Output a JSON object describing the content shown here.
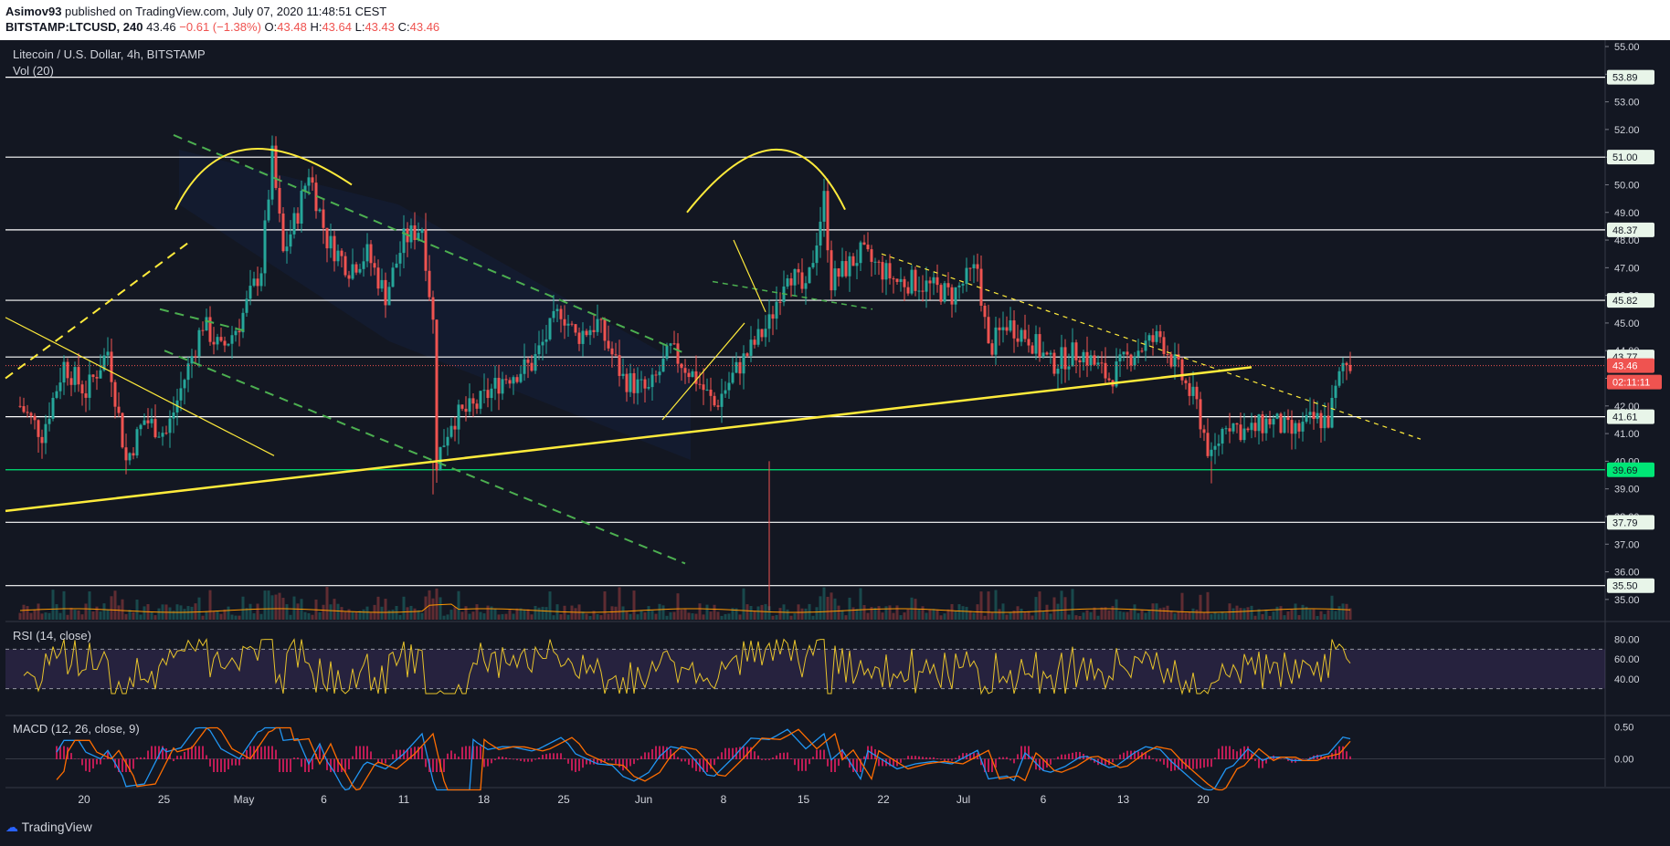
{
  "header": {
    "publisher": "Asimov93",
    "published_text": "published on TradingView.com, July 07, 2020 11:48:51 CEST",
    "symbol": "BITSTAMP:LTCUSD, 240",
    "last": "43.46",
    "change": "−0.61 (−1.38%)",
    "o_label": "O:",
    "o_value": "43.48",
    "h_label": "H:",
    "h_value": "43.64",
    "l_label": "L:",
    "l_value": "43.43",
    "c_label": "C:",
    "c_value": "43.46"
  },
  "footer": {
    "logo_text": "TradingView"
  },
  "colors": {
    "up": "#26a69a",
    "down": "#ef5350",
    "levels": "#ffffff",
    "trend": "#ffeb3b",
    "green_lines": "#4caf50",
    "rsi": "#e7c32b",
    "macd": "#2196f3",
    "signal": "#ff6d00"
  },
  "chart_data": [
    {
      "type": "candlestick",
      "title": "Litecoin / U.S. Dollar, 4h, BITSTAMP",
      "volume_label": "Vol (20)",
      "x_tick_labels": [
        "20",
        "25",
        "May",
        "6",
        "11",
        "18",
        "25",
        "Jun",
        "8",
        "15",
        "22",
        "Jul",
        "6",
        "13",
        "20"
      ],
      "y_ticks": [
        "55.00",
        "54.00",
        "53.00",
        "52.00",
        "51.00",
        "50.00",
        "49.00",
        "48.00",
        "47.00",
        "46.00",
        "45.00",
        "44.00",
        "43.00",
        "42.00",
        "41.00",
        "40.00",
        "39.00",
        "38.00",
        "37.00",
        "36.00",
        "35.00"
      ],
      "ylim": [
        34.5,
        55.0
      ],
      "horizontal_levels": [
        {
          "value": 53.89,
          "label": "53.89"
        },
        {
          "value": 51.0,
          "label": "51.00"
        },
        {
          "value": 48.37,
          "label": "48.37"
        },
        {
          "value": 45.82,
          "label": "45.82"
        },
        {
          "value": 43.77,
          "label": "43.77"
        },
        {
          "value": 41.61,
          "label": "41.61"
        },
        {
          "value": 39.69,
          "label": "39.69"
        },
        {
          "value": 37.79,
          "label": "37.79"
        },
        {
          "value": 35.5,
          "label": "35.50"
        }
      ],
      "last_price": {
        "value": 43.46,
        "label": "43.46",
        "countdown": "02:11:11"
      },
      "price_path": [
        [
          0,
          42.0
        ],
        [
          6,
          41.0
        ],
        [
          12,
          43.5
        ],
        [
          18,
          42.5
        ],
        [
          24,
          44.0
        ],
        [
          29,
          40.0
        ],
        [
          34,
          41.5
        ],
        [
          40,
          41.0
        ],
        [
          45,
          43.0
        ],
        [
          50,
          45.0
        ],
        [
          55,
          44.0
        ],
        [
          60,
          45.0
        ],
        [
          66,
          47.0
        ],
        [
          69,
          51.0
        ],
        [
          72,
          47.5
        ],
        [
          76,
          49.0
        ],
        [
          79,
          50.5
        ],
        [
          84,
          48.0
        ],
        [
          90,
          47.0
        ],
        [
          95,
          47.5
        ],
        [
          100,
          46.0
        ],
        [
          105,
          48.0
        ],
        [
          110,
          48.5
        ],
        [
          113,
          45.0
        ],
        [
          114,
          40.0
        ],
        [
          118,
          41.5
        ],
        [
          125,
          42.0
        ],
        [
          132,
          43.0
        ],
        [
          140,
          43.5
        ],
        [
          148,
          45.5
        ],
        [
          152,
          44.5
        ],
        [
          158,
          45.0
        ],
        [
          165,
          43.0
        ],
        [
          172,
          42.5
        ],
        [
          178,
          44.0
        ],
        [
          185,
          43.0
        ],
        [
          190,
          42.0
        ],
        [
          197,
          43.5
        ],
        [
          205,
          45.0
        ],
        [
          210,
          47.0
        ],
        [
          215,
          46.0
        ],
        [
          220,
          49.5
        ],
        [
          222,
          46.5
        ],
        [
          226,
          47.0
        ],
        [
          230,
          47.5
        ],
        [
          235,
          47.0
        ],
        [
          240,
          46.5
        ],
        [
          245,
          46.5
        ],
        [
          255,
          46.0
        ],
        [
          262,
          47.0
        ],
        [
          265,
          44.0
        ],
        [
          270,
          45.0
        ],
        [
          276,
          44.5
        ],
        [
          282,
          43.5
        ],
        [
          290,
          44.0
        ],
        [
          298,
          43.0
        ],
        [
          305,
          44.0
        ],
        [
          312,
          44.5
        ],
        [
          318,
          43.0
        ],
        [
          322,
          42.0
        ],
        [
          326,
          40.0
        ],
        [
          330,
          41.5
        ],
        [
          336,
          41.0
        ],
        [
          342,
          41.5
        ],
        [
          348,
          41.0
        ],
        [
          354,
          41.5
        ],
        [
          358,
          41.5
        ],
        [
          362,
          43.5
        ],
        [
          364,
          43.5
        ]
      ],
      "rsi": {
        "label": "RSI (14, close)",
        "ticks": [
          "80.00",
          "60.00",
          "40.00"
        ],
        "upper": 70,
        "lower": 30
      },
      "macd": {
        "label": "MACD (12, 26, close, 9)",
        "ticks": [
          "0.50",
          "0.00"
        ]
      }
    }
  ]
}
